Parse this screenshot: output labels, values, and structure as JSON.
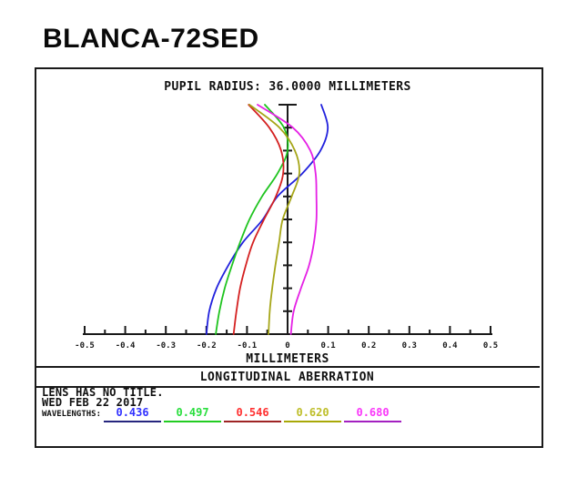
{
  "title": "BLANCA-72SED",
  "plot": {
    "header": "PUPIL RADIUS: 36.0000 MILLIMETERS",
    "x_axis_title": "MILLIMETERS",
    "band_title": "LONGITUDINAL ABERRATION"
  },
  "info": {
    "line1": "LENS HAS NO TITLE.",
    "line2": "WED FEB 22 2017",
    "wavelengths_label": "WAVELENGTHS:"
  },
  "chart_data": {
    "type": "line",
    "title": "LONGITUDINAL ABERRATION",
    "subtitle": "PUPIL RADIUS: 36.0000 MILLIMETERS",
    "xlabel": "MILLIMETERS",
    "ylabel": "pupil radius (mm), unlabeled axis 0 to 36",
    "xlim": [
      -0.5,
      0.5
    ],
    "x_major_tick_step": 0.1,
    "x_minor_tick_step": 0.05,
    "x_tick_labels": [
      "-0.5",
      "-0.4",
      "-0.3",
      "-0.2",
      "-0.1",
      "0",
      "0.1",
      "0.2",
      "0.3",
      "0.4",
      "0.5"
    ],
    "ylim": [
      0,
      36
    ],
    "y_tick_step": 3.6,
    "grid": false,
    "legend_position": "bottom",
    "pupil_radius_mm": [
      0,
      3.6,
      7.2,
      10.8,
      14.4,
      18,
      21.6,
      25.2,
      28.8,
      32.4,
      36
    ],
    "series": [
      {
        "name": "0.436",
        "line_color": "#2121dd",
        "label_color": "#3232ff",
        "underline_color": "#26267e",
        "aberration_mm": [
          -0.2,
          -0.193,
          -0.175,
          -0.146,
          -0.11,
          -0.061,
          -0.025,
          0.036,
          0.081,
          0.099,
          0.083
        ]
      },
      {
        "name": "0.497",
        "line_color": "#1fc41f",
        "label_color": "#2ade3e",
        "underline_color": "#22cc22",
        "aberration_mm": [
          -0.177,
          -0.168,
          -0.155,
          -0.137,
          -0.117,
          -0.094,
          -0.063,
          -0.025,
          0.0,
          -0.009,
          -0.056
        ]
      },
      {
        "name": "0.546",
        "line_color": "#d42020",
        "label_color": "#ff3030",
        "underline_color": "#9e2424",
        "aberration_mm": [
          -0.133,
          -0.126,
          -0.117,
          -0.103,
          -0.085,
          -0.058,
          -0.029,
          -0.011,
          -0.016,
          -0.045,
          -0.096
        ]
      },
      {
        "name": "0.620",
        "line_color": "#a6a618",
        "label_color": "#bebe2a",
        "underline_color": "#a8a808",
        "aberration_mm": [
          -0.047,
          -0.044,
          -0.038,
          -0.03,
          -0.021,
          -0.012,
          0.01,
          0.029,
          0.018,
          -0.02,
          -0.094
        ]
      },
      {
        "name": "0.680",
        "line_color": "#e520e5",
        "label_color": "#f938f9",
        "underline_color": "#a320c0",
        "aberration_mm": [
          0.008,
          0.015,
          0.033,
          0.053,
          0.065,
          0.071,
          0.071,
          0.069,
          0.056,
          0.013,
          -0.074
        ]
      }
    ]
  }
}
